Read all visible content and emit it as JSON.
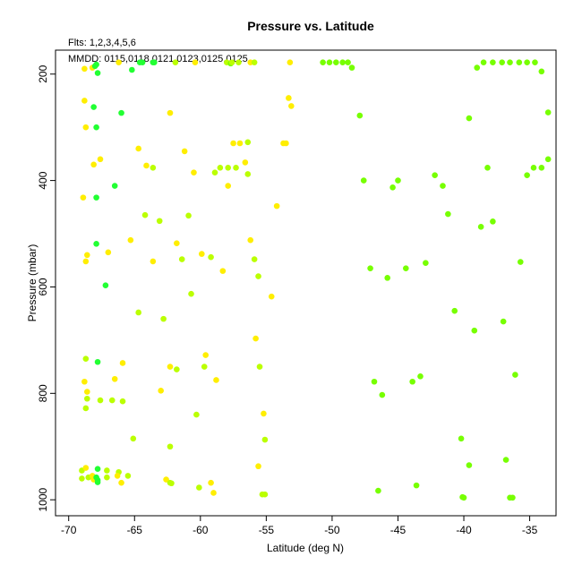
{
  "chart_data": {
    "type": "scatter",
    "title": "Pressure vs. Latitude",
    "annotations": {
      "flights": "Flts: 1,2,3,4,5,6",
      "dates": "MMDD: 0115,0118,0121,0123,0125,0125"
    },
    "xlabel": "Latitude (deg N)",
    "ylabel": "Pressure (mbar)",
    "xlim": [
      -71,
      -33
    ],
    "ylim": [
      1030,
      155
    ],
    "y_reversed": true,
    "grid": false,
    "xticks": [
      -70,
      -65,
      -60,
      -55,
      -50,
      -45,
      -40,
      -35
    ],
    "xtick_labels": [
      "-70",
      "-65",
      "-60",
      "-55",
      "-50",
      "-45",
      "-40",
      "-35"
    ],
    "yticks": [
      200,
      400,
      600,
      800,
      1000
    ],
    "ytick_labels": [
      "200",
      "400",
      "600",
      "800",
      "1000"
    ],
    "colors": {
      "yellow": "#ffee00",
      "lime": "#bbff00",
      "lightgreen": "#77ff00",
      "green": "#22ff33"
    },
    "points": [
      {
        "x": -68.8,
        "y": 190,
        "c": "yellow"
      },
      {
        "x": -68.2,
        "y": 188,
        "c": "yellow"
      },
      {
        "x": -68.0,
        "y": 185,
        "c": "green"
      },
      {
        "x": -67.9,
        "y": 182,
        "c": "green"
      },
      {
        "x": -67.8,
        "y": 198,
        "c": "green"
      },
      {
        "x": -66.2,
        "y": 178,
        "c": "yellow"
      },
      {
        "x": -65.2,
        "y": 192,
        "c": "green"
      },
      {
        "x": -64.6,
        "y": 178,
        "c": "green"
      },
      {
        "x": -64.4,
        "y": 178,
        "c": "green"
      },
      {
        "x": -63.6,
        "y": 178,
        "c": "green"
      },
      {
        "x": -63.5,
        "y": 178,
        "c": "green"
      },
      {
        "x": -61.9,
        "y": 178,
        "c": "lime"
      },
      {
        "x": -60.4,
        "y": 178,
        "c": "yellow"
      },
      {
        "x": -58.0,
        "y": 178,
        "c": "lime"
      },
      {
        "x": -57.7,
        "y": 180,
        "c": "lightgreen"
      },
      {
        "x": -57.6,
        "y": 178,
        "c": "lime"
      },
      {
        "x": -57.1,
        "y": 178,
        "c": "lime"
      },
      {
        "x": -56.2,
        "y": 178,
        "c": "yellow"
      },
      {
        "x": -55.9,
        "y": 178,
        "c": "lime"
      },
      {
        "x": -53.2,
        "y": 178,
        "c": "yellow"
      },
      {
        "x": -50.7,
        "y": 178,
        "c": "lightgreen"
      },
      {
        "x": -50.2,
        "y": 178,
        "c": "lightgreen"
      },
      {
        "x": -49.7,
        "y": 178,
        "c": "lightgreen"
      },
      {
        "x": -49.2,
        "y": 178,
        "c": "lightgreen"
      },
      {
        "x": -48.8,
        "y": 178,
        "c": "lightgreen"
      },
      {
        "x": -48.5,
        "y": 188,
        "c": "lightgreen"
      },
      {
        "x": -39.0,
        "y": 188,
        "c": "lightgreen"
      },
      {
        "x": -38.5,
        "y": 178,
        "c": "lightgreen"
      },
      {
        "x": -37.8,
        "y": 178,
        "c": "lightgreen"
      },
      {
        "x": -37.1,
        "y": 178,
        "c": "lightgreen"
      },
      {
        "x": -36.5,
        "y": 178,
        "c": "lightgreen"
      },
      {
        "x": -35.8,
        "y": 178,
        "c": "lightgreen"
      },
      {
        "x": -35.2,
        "y": 178,
        "c": "lightgreen"
      },
      {
        "x": -34.6,
        "y": 178,
        "c": "lightgreen"
      },
      {
        "x": -34.1,
        "y": 195,
        "c": "lightgreen"
      },
      {
        "x": -68.8,
        "y": 250,
        "c": "yellow"
      },
      {
        "x": -68.1,
        "y": 262,
        "c": "green"
      },
      {
        "x": -66.0,
        "y": 273,
        "c": "green"
      },
      {
        "x": -62.3,
        "y": 273,
        "c": "yellow"
      },
      {
        "x": -53.3,
        "y": 245,
        "c": "yellow"
      },
      {
        "x": -53.1,
        "y": 260,
        "c": "yellow"
      },
      {
        "x": -47.9,
        "y": 278,
        "c": "lightgreen"
      },
      {
        "x": -39.6,
        "y": 283,
        "c": "lightgreen"
      },
      {
        "x": -33.6,
        "y": 272,
        "c": "lightgreen"
      },
      {
        "x": -68.7,
        "y": 300,
        "c": "yellow"
      },
      {
        "x": -67.9,
        "y": 300,
        "c": "green"
      },
      {
        "x": -64.7,
        "y": 340,
        "c": "yellow"
      },
      {
        "x": -61.2,
        "y": 345,
        "c": "yellow"
      },
      {
        "x": -57.5,
        "y": 330,
        "c": "yellow"
      },
      {
        "x": -57.0,
        "y": 330,
        "c": "yellow"
      },
      {
        "x": -56.4,
        "y": 328,
        "c": "lime"
      },
      {
        "x": -53.7,
        "y": 330,
        "c": "yellow"
      },
      {
        "x": -53.5,
        "y": 330,
        "c": "yellow"
      },
      {
        "x": -67.6,
        "y": 360,
        "c": "yellow"
      },
      {
        "x": -68.1,
        "y": 370,
        "c": "yellow"
      },
      {
        "x": -64.1,
        "y": 372,
        "c": "yellow"
      },
      {
        "x": -63.6,
        "y": 376,
        "c": "lime"
      },
      {
        "x": -60.5,
        "y": 385,
        "c": "yellow"
      },
      {
        "x": -58.9,
        "y": 385,
        "c": "lime"
      },
      {
        "x": -58.5,
        "y": 376,
        "c": "lime"
      },
      {
        "x": -57.9,
        "y": 376,
        "c": "lime"
      },
      {
        "x": -57.3,
        "y": 376,
        "c": "lime"
      },
      {
        "x": -56.6,
        "y": 366,
        "c": "yellow"
      },
      {
        "x": -56.4,
        "y": 388,
        "c": "lime"
      },
      {
        "x": -47.6,
        "y": 400,
        "c": "lightgreen"
      },
      {
        "x": -45.4,
        "y": 413,
        "c": "lightgreen"
      },
      {
        "x": -45.0,
        "y": 400,
        "c": "lightgreen"
      },
      {
        "x": -42.2,
        "y": 390,
        "c": "lightgreen"
      },
      {
        "x": -41.6,
        "y": 410,
        "c": "lightgreen"
      },
      {
        "x": -38.2,
        "y": 376,
        "c": "lightgreen"
      },
      {
        "x": -35.2,
        "y": 390,
        "c": "lightgreen"
      },
      {
        "x": -34.7,
        "y": 376,
        "c": "lightgreen"
      },
      {
        "x": -34.1,
        "y": 376,
        "c": "lightgreen"
      },
      {
        "x": -33.6,
        "y": 360,
        "c": "lightgreen"
      },
      {
        "x": -57.9,
        "y": 410,
        "c": "yellow"
      },
      {
        "x": -66.5,
        "y": 410,
        "c": "green"
      },
      {
        "x": -68.9,
        "y": 432,
        "c": "yellow"
      },
      {
        "x": -67.9,
        "y": 432,
        "c": "green"
      },
      {
        "x": -54.2,
        "y": 448,
        "c": "yellow"
      },
      {
        "x": -64.2,
        "y": 465,
        "c": "lime"
      },
      {
        "x": -63.1,
        "y": 476,
        "c": "lime"
      },
      {
        "x": -60.9,
        "y": 466,
        "c": "lime"
      },
      {
        "x": -41.2,
        "y": 463,
        "c": "lightgreen"
      },
      {
        "x": -38.7,
        "y": 487,
        "c": "lightgreen"
      },
      {
        "x": -37.8,
        "y": 477,
        "c": "lightgreen"
      },
      {
        "x": -65.3,
        "y": 512,
        "c": "yellow"
      },
      {
        "x": -67.9,
        "y": 519,
        "c": "green"
      },
      {
        "x": -61.8,
        "y": 518,
        "c": "yellow"
      },
      {
        "x": -56.2,
        "y": 512,
        "c": "yellow"
      },
      {
        "x": -68.6,
        "y": 540,
        "c": "yellow"
      },
      {
        "x": -68.7,
        "y": 552,
        "c": "yellow"
      },
      {
        "x": -67.0,
        "y": 535,
        "c": "yellow"
      },
      {
        "x": -63.6,
        "y": 552,
        "c": "yellow"
      },
      {
        "x": -61.4,
        "y": 548,
        "c": "lime"
      },
      {
        "x": -59.9,
        "y": 538,
        "c": "yellow"
      },
      {
        "x": -59.2,
        "y": 544,
        "c": "lime"
      },
      {
        "x": -58.3,
        "y": 570,
        "c": "yellow"
      },
      {
        "x": -55.9,
        "y": 548,
        "c": "lime"
      },
      {
        "x": -55.6,
        "y": 580,
        "c": "lime"
      },
      {
        "x": -47.1,
        "y": 565,
        "c": "lightgreen"
      },
      {
        "x": -45.8,
        "y": 583,
        "c": "lightgreen"
      },
      {
        "x": -44.4,
        "y": 565,
        "c": "lightgreen"
      },
      {
        "x": -42.9,
        "y": 555,
        "c": "lightgreen"
      },
      {
        "x": -35.7,
        "y": 553,
        "c": "lightgreen"
      },
      {
        "x": -67.2,
        "y": 597,
        "c": "green"
      },
      {
        "x": -60.7,
        "y": 613,
        "c": "lime"
      },
      {
        "x": -54.6,
        "y": 618,
        "c": "yellow"
      },
      {
        "x": -64.7,
        "y": 648,
        "c": "lime"
      },
      {
        "x": -62.8,
        "y": 660,
        "c": "lime"
      },
      {
        "x": -40.7,
        "y": 645,
        "c": "lightgreen"
      },
      {
        "x": -37.0,
        "y": 665,
        "c": "lightgreen"
      },
      {
        "x": -39.2,
        "y": 682,
        "c": "lightgreen"
      },
      {
        "x": -55.8,
        "y": 697,
        "c": "yellow"
      },
      {
        "x": -68.7,
        "y": 735,
        "c": "lime"
      },
      {
        "x": -67.8,
        "y": 741,
        "c": "green"
      },
      {
        "x": -65.9,
        "y": 743,
        "c": "yellow"
      },
      {
        "x": -59.6,
        "y": 728,
        "c": "yellow"
      },
      {
        "x": -62.3,
        "y": 750,
        "c": "yellow"
      },
      {
        "x": -61.8,
        "y": 755,
        "c": "lime"
      },
      {
        "x": -59.7,
        "y": 750,
        "c": "lime"
      },
      {
        "x": -55.5,
        "y": 750,
        "c": "lime"
      },
      {
        "x": -36.1,
        "y": 765,
        "c": "lightgreen"
      },
      {
        "x": -68.8,
        "y": 778,
        "c": "yellow"
      },
      {
        "x": -66.5,
        "y": 773,
        "c": "yellow"
      },
      {
        "x": -58.8,
        "y": 775,
        "c": "yellow"
      },
      {
        "x": -46.8,
        "y": 778,
        "c": "lightgreen"
      },
      {
        "x": -43.9,
        "y": 778,
        "c": "lightgreen"
      },
      {
        "x": -43.3,
        "y": 768,
        "c": "lightgreen"
      },
      {
        "x": -68.6,
        "y": 797,
        "c": "yellow"
      },
      {
        "x": -63.0,
        "y": 795,
        "c": "yellow"
      },
      {
        "x": -46.2,
        "y": 803,
        "c": "lightgreen"
      },
      {
        "x": -68.6,
        "y": 810,
        "c": "lime"
      },
      {
        "x": -67.6,
        "y": 813,
        "c": "lime"
      },
      {
        "x": -66.7,
        "y": 813,
        "c": "lime"
      },
      {
        "x": -65.9,
        "y": 815,
        "c": "lime"
      },
      {
        "x": -68.7,
        "y": 828,
        "c": "lime"
      },
      {
        "x": -60.3,
        "y": 840,
        "c": "lime"
      },
      {
        "x": -55.2,
        "y": 838,
        "c": "yellow"
      },
      {
        "x": -65.1,
        "y": 885,
        "c": "lime"
      },
      {
        "x": -55.1,
        "y": 887,
        "c": "lime"
      },
      {
        "x": -40.2,
        "y": 885,
        "c": "lightgreen"
      },
      {
        "x": -62.3,
        "y": 900,
        "c": "lime"
      },
      {
        "x": -36.8,
        "y": 925,
        "c": "lightgreen"
      },
      {
        "x": -55.6,
        "y": 937,
        "c": "yellow"
      },
      {
        "x": -39.6,
        "y": 935,
        "c": "lightgreen"
      },
      {
        "x": -69.0,
        "y": 945,
        "c": "lime"
      },
      {
        "x": -68.7,
        "y": 940,
        "c": "yellow"
      },
      {
        "x": -67.8,
        "y": 942,
        "c": "green"
      },
      {
        "x": -67.1,
        "y": 945,
        "c": "lime"
      },
      {
        "x": -66.2,
        "y": 948,
        "c": "lime"
      },
      {
        "x": -66.3,
        "y": 955,
        "c": "yellow"
      },
      {
        "x": -65.5,
        "y": 955,
        "c": "lime"
      },
      {
        "x": -69.0,
        "y": 960,
        "c": "lime"
      },
      {
        "x": -68.5,
        "y": 958,
        "c": "lime"
      },
      {
        "x": -68.2,
        "y": 955,
        "c": "yellow"
      },
      {
        "x": -68.1,
        "y": 962,
        "c": "yellow"
      },
      {
        "x": -67.9,
        "y": 958,
        "c": "green"
      },
      {
        "x": -67.8,
        "y": 963,
        "c": "green"
      },
      {
        "x": -67.8,
        "y": 967,
        "c": "green"
      },
      {
        "x": -67.1,
        "y": 958,
        "c": "lime"
      },
      {
        "x": -66.0,
        "y": 968,
        "c": "yellow"
      },
      {
        "x": -62.6,
        "y": 962,
        "c": "yellow"
      },
      {
        "x": -62.3,
        "y": 968,
        "c": "lime"
      },
      {
        "x": -62.2,
        "y": 969,
        "c": "lime"
      },
      {
        "x": -59.2,
        "y": 968,
        "c": "yellow"
      },
      {
        "x": -60.1,
        "y": 977,
        "c": "lime"
      },
      {
        "x": -59.0,
        "y": 987,
        "c": "yellow"
      },
      {
        "x": -55.3,
        "y": 990,
        "c": "lime"
      },
      {
        "x": -55.1,
        "y": 990,
        "c": "lime"
      },
      {
        "x": -46.5,
        "y": 983,
        "c": "lightgreen"
      },
      {
        "x": -43.6,
        "y": 973,
        "c": "lightgreen"
      },
      {
        "x": -40.1,
        "y": 995,
        "c": "lightgreen"
      },
      {
        "x": -40.0,
        "y": 996,
        "c": "lightgreen"
      },
      {
        "x": -36.5,
        "y": 996,
        "c": "lightgreen"
      },
      {
        "x": -36.3,
        "y": 996,
        "c": "lightgreen"
      }
    ]
  }
}
